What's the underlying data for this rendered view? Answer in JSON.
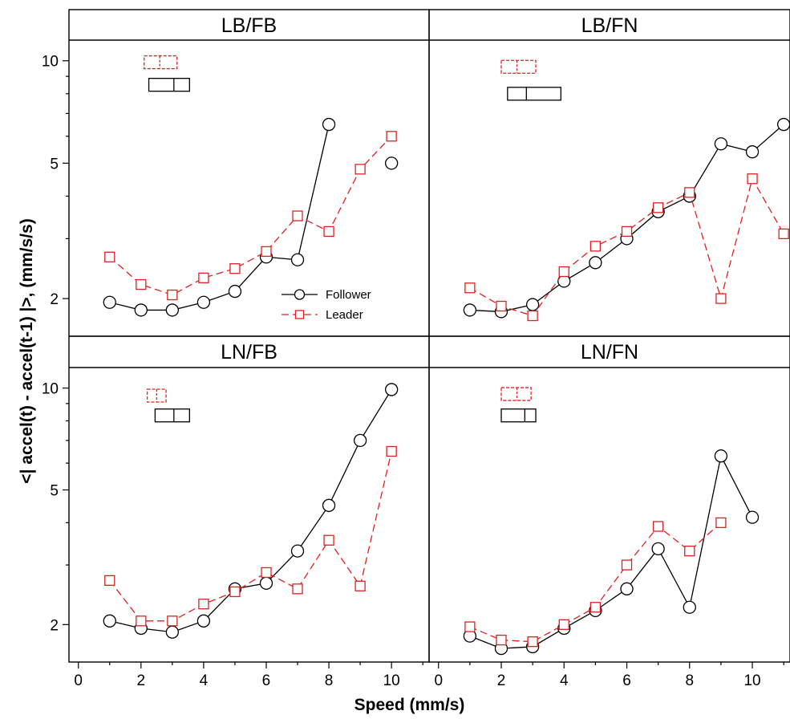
{
  "chart_data": {
    "type": "line",
    "layout": "2x2 panels, shared axes",
    "xlabel": "Speed (mm/s)",
    "ylabel": "<| accel(t) - accel(t-1) |>, (mm/s/s)",
    "xlim": [
      -0.3,
      11.2
    ],
    "ylim": [
      1.55,
      11.5
    ],
    "yscale": "log",
    "xticks": [
      0,
      2,
      4,
      6,
      8,
      10
    ],
    "yticks": [
      2,
      5,
      10
    ],
    "grid": false,
    "colors": {
      "follower": "#000000",
      "leader": "#e02020"
    },
    "legend": {
      "placement": "inside lower-right of top-left panel",
      "entries": [
        {
          "label": "Follower",
          "marker": "circle",
          "line": "solid"
        },
        {
          "label": "Leader",
          "marker": "square",
          "line": "dashed"
        }
      ]
    },
    "panels": [
      {
        "title": "LB/FB",
        "x": [
          1,
          2,
          3,
          4,
          5,
          6,
          7,
          8,
          9,
          10
        ],
        "series": [
          {
            "name": "Follower",
            "values": [
              1.95,
              1.85,
              1.85,
              1.95,
              2.1,
              2.65,
              2.6,
              6.5,
              null,
              5.0
            ]
          },
          {
            "name": "Leader",
            "values": [
              2.65,
              2.2,
              2.05,
              2.3,
              2.45,
              2.75,
              3.5,
              3.15,
              4.8,
              6.0
            ]
          }
        ],
        "boxes": [
          {
            "series": "Leader",
            "x_low": 2.1,
            "x_mid": 2.6,
            "x_high": 3.15,
            "y": 9.9
          },
          {
            "series": "Follower",
            "x_low": 2.25,
            "x_mid": 3.05,
            "x_high": 3.55,
            "y": 8.5
          }
        ]
      },
      {
        "title": "LB/FN",
        "x": [
          1,
          2,
          3,
          4,
          5,
          6,
          7,
          8,
          9,
          10,
          11
        ],
        "series": [
          {
            "name": "Follower",
            "values": [
              1.85,
              1.83,
              1.92,
              2.25,
              2.55,
              3.0,
              3.6,
              4.0,
              5.7,
              5.4,
              6.5
            ]
          },
          {
            "name": "Leader",
            "values": [
              2.15,
              1.9,
              1.78,
              2.4,
              2.85,
              3.15,
              3.7,
              4.1,
              2.0,
              4.5,
              3.1
            ]
          }
        ],
        "boxes": [
          {
            "series": "Leader",
            "x_low": 2.0,
            "x_mid": 2.5,
            "x_high": 3.1,
            "y": 9.6
          },
          {
            "series": "Follower",
            "x_low": 2.2,
            "x_mid": 2.8,
            "x_high": 3.9,
            "y": 8.0
          }
        ]
      },
      {
        "title": "LN/FB",
        "x": [
          1,
          2,
          3,
          4,
          5,
          6,
          7,
          8,
          9,
          10
        ],
        "series": [
          {
            "name": "Follower",
            "values": [
              2.05,
              1.95,
              1.9,
              2.05,
              2.55,
              2.65,
              3.3,
              4.5,
              7.0,
              9.9
            ]
          },
          {
            "name": "Leader",
            "values": [
              2.7,
              2.05,
              2.05,
              2.3,
              2.5,
              2.85,
              2.55,
              3.55,
              2.6,
              6.5
            ]
          }
        ],
        "boxes": [
          {
            "series": "Leader",
            "x_low": 2.2,
            "x_mid": 2.5,
            "x_high": 2.8,
            "y": 9.5
          },
          {
            "series": "Follower",
            "x_low": 2.45,
            "x_mid": 3.05,
            "x_high": 3.55,
            "y": 8.3
          }
        ]
      },
      {
        "title": "LN/FN",
        "x": [
          1,
          2,
          3,
          4,
          5,
          6,
          7,
          8,
          9,
          10
        ],
        "series": [
          {
            "name": "Follower",
            "values": [
              1.85,
              1.7,
              1.72,
              1.95,
              2.2,
              2.55,
              3.35,
              2.25,
              6.3,
              4.15
            ]
          },
          {
            "name": "Leader",
            "values": [
              1.97,
              1.8,
              1.78,
              2.0,
              2.25,
              3.0,
              3.9,
              3.3,
              4.0,
              null
            ]
          }
        ],
        "boxes": [
          {
            "series": "Leader",
            "x_low": 2.0,
            "x_mid": 2.5,
            "x_high": 2.95,
            "y": 9.6
          },
          {
            "series": "Follower",
            "x_low": 2.0,
            "x_mid": 2.75,
            "x_high": 3.1,
            "y": 8.3
          }
        ]
      }
    ]
  }
}
